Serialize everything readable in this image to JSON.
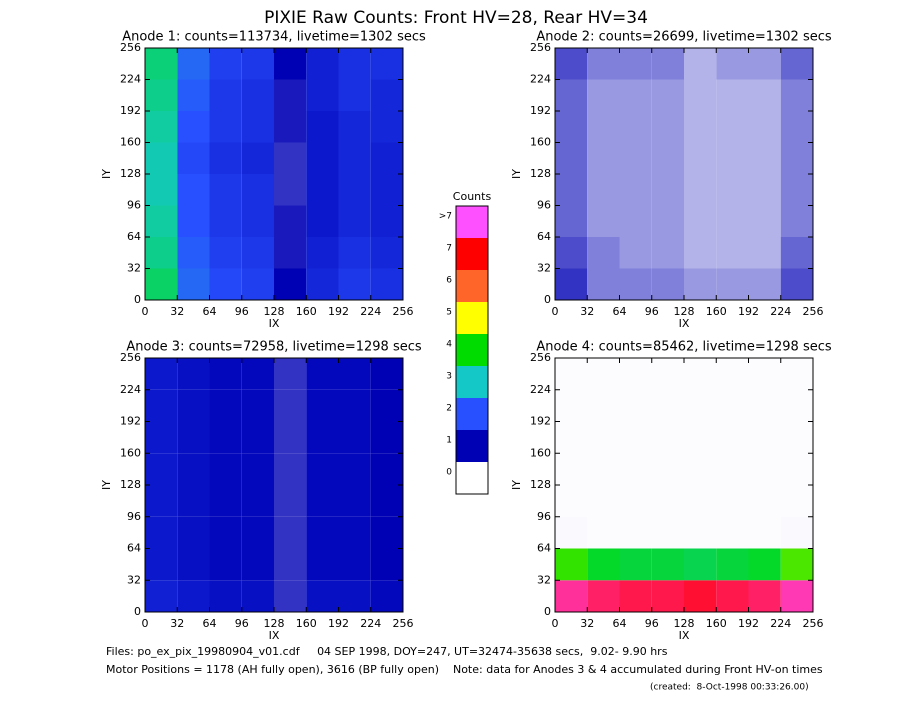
{
  "title": "PIXIE Raw Counts:  Front HV=28, Rear HV=34",
  "chart_data": [
    {
      "type": "heatmap",
      "title": "Anode 1: counts=113734, livetime=1302 secs",
      "xlabel": "IX",
      "ylabel": "IY",
      "xlim": [
        0,
        256
      ],
      "ylim": [
        0,
        256
      ],
      "xticks": [
        0,
        32,
        64,
        96,
        128,
        160,
        192,
        224,
        256
      ],
      "yticks": [
        0,
        32,
        64,
        96,
        128,
        160,
        192,
        224,
        256
      ],
      "xbins": [
        0,
        32,
        64,
        96,
        128,
        160,
        192,
        224,
        256
      ],
      "ybins": [
        0,
        32,
        64,
        96,
        128,
        160,
        192,
        224,
        256
      ],
      "z": [
        [
          3.5,
          2.2,
          1.9,
          1.8,
          1.0,
          1.5,
          1.7,
          1.6
        ],
        [
          3.3,
          2.1,
          1.8,
          1.7,
          0.9,
          1.4,
          1.6,
          1.5
        ],
        [
          3.2,
          2.0,
          1.7,
          1.6,
          0.9,
          1.3,
          1.5,
          1.4
        ],
        [
          3.1,
          2.0,
          1.7,
          1.6,
          0.8,
          1.3,
          1.5,
          1.4
        ],
        [
          3.1,
          1.9,
          1.6,
          1.5,
          0.8,
          1.3,
          1.5,
          1.4
        ],
        [
          3.2,
          2.0,
          1.7,
          1.6,
          0.9,
          1.3,
          1.5,
          1.5
        ],
        [
          3.3,
          2.1,
          1.7,
          1.6,
          0.9,
          1.4,
          1.6,
          1.5
        ],
        [
          3.4,
          2.2,
          1.8,
          1.7,
          1.0,
          1.4,
          1.6,
          1.6
        ]
      ]
    },
    {
      "type": "heatmap",
      "title": "Anode 2: counts=26699, livetime=1302 secs",
      "xlabel": "IX",
      "ylabel": "IY",
      "xlim": [
        0,
        256
      ],
      "ylim": [
        0,
        256
      ],
      "xticks": [
        0,
        32,
        64,
        96,
        128,
        160,
        192,
        224,
        256
      ],
      "yticks": [
        0,
        32,
        64,
        96,
        128,
        160,
        192,
        224,
        256
      ],
      "xbins": [
        0,
        32,
        64,
        96,
        128,
        160,
        192,
        224,
        256
      ],
      "ybins": [
        0,
        32,
        64,
        96,
        128,
        160,
        192,
        224,
        256
      ],
      "z": [
        [
          0.8,
          0.5,
          0.5,
          0.5,
          0.4,
          0.4,
          0.4,
          0.7
        ],
        [
          0.7,
          0.5,
          0.4,
          0.4,
          0.3,
          0.3,
          0.3,
          0.6
        ],
        [
          0.6,
          0.4,
          0.4,
          0.4,
          0.3,
          0.3,
          0.3,
          0.5
        ],
        [
          0.6,
          0.4,
          0.4,
          0.4,
          0.3,
          0.3,
          0.3,
          0.5
        ],
        [
          0.6,
          0.4,
          0.4,
          0.4,
          0.3,
          0.3,
          0.3,
          0.5
        ],
        [
          0.6,
          0.4,
          0.4,
          0.4,
          0.3,
          0.3,
          0.3,
          0.5
        ],
        [
          0.6,
          0.4,
          0.4,
          0.4,
          0.3,
          0.3,
          0.3,
          0.5
        ],
        [
          0.7,
          0.5,
          0.5,
          0.5,
          0.3,
          0.4,
          0.4,
          0.6
        ]
      ]
    },
    {
      "type": "heatmap",
      "title": "Anode 3: counts=72958, livetime=1298 secs",
      "xlabel": "IX",
      "ylabel": "IY",
      "xlim": [
        0,
        256
      ],
      "ylim": [
        0,
        256
      ],
      "xticks": [
        0,
        32,
        64,
        96,
        128,
        160,
        192,
        224,
        256
      ],
      "yticks": [
        0,
        32,
        64,
        96,
        128,
        160,
        192,
        224,
        256
      ],
      "xbins": [
        0,
        32,
        64,
        96,
        128,
        160,
        192,
        224,
        256
      ],
      "ybins": [
        0,
        32,
        64,
        96,
        128,
        160,
        192,
        224,
        256
      ],
      "z": [
        [
          1.4,
          1.3,
          1.2,
          1.2,
          0.8,
          1.2,
          1.2,
          1.1
        ],
        [
          1.3,
          1.2,
          1.1,
          1.1,
          0.8,
          1.1,
          1.1,
          1.0
        ],
        [
          1.3,
          1.2,
          1.1,
          1.1,
          0.8,
          1.1,
          1.1,
          1.0
        ],
        [
          1.3,
          1.2,
          1.1,
          1.1,
          0.8,
          1.1,
          1.1,
          1.0
        ],
        [
          1.3,
          1.2,
          1.1,
          1.1,
          0.8,
          1.1,
          1.1,
          1.0
        ],
        [
          1.3,
          1.2,
          1.1,
          1.1,
          0.8,
          1.1,
          1.1,
          1.0
        ],
        [
          1.3,
          1.2,
          1.1,
          1.1,
          0.8,
          1.1,
          1.1,
          1.0
        ],
        [
          1.3,
          1.2,
          1.1,
          1.1,
          0.8,
          1.1,
          1.1,
          1.0
        ]
      ]
    },
    {
      "type": "heatmap",
      "title": "Anode 4: counts=85462, livetime=1298 secs",
      "xlabel": "IX",
      "ylabel": "IY",
      "xlim": [
        0,
        256
      ],
      "ylim": [
        0,
        256
      ],
      "xticks": [
        0,
        32,
        64,
        96,
        128,
        160,
        192,
        224,
        256
      ],
      "yticks": [
        0,
        32,
        64,
        96,
        128,
        160,
        192,
        224,
        256
      ],
      "xbins": [
        0,
        32,
        64,
        96,
        128,
        160,
        192,
        224,
        256
      ],
      "ybins": [
        0,
        32,
        64,
        96,
        128,
        160,
        192,
        224,
        256
      ],
      "z": [
        [
          7.6,
          7.4,
          7.3,
          7.3,
          7.2,
          7.3,
          7.4,
          7.7
        ],
        [
          4.2,
          3.8,
          3.7,
          3.7,
          3.6,
          3.7,
          3.8,
          4.3
        ],
        [
          0.02,
          0.01,
          0.01,
          0.01,
          0.01,
          0.01,
          0.01,
          0.02
        ],
        [
          0.01,
          0.01,
          0.01,
          0.01,
          0.01,
          0.01,
          0.01,
          0.01
        ],
        [
          0.01,
          0.01,
          0.01,
          0.01,
          0.01,
          0.01,
          0.01,
          0.01
        ],
        [
          0.01,
          0.01,
          0.01,
          0.01,
          0.01,
          0.01,
          0.01,
          0.01
        ],
        [
          0.01,
          0.01,
          0.01,
          0.01,
          0.01,
          0.01,
          0.01,
          0.01
        ],
        [
          0.01,
          0.01,
          0.01,
          0.01,
          0.01,
          0.01,
          0.01,
          0.01
        ]
      ]
    }
  ],
  "colorbar": {
    "title": "Counts",
    "levels": [
      0,
      1,
      2,
      3,
      4,
      5,
      6,
      7,
      {
        "value": 8,
        "label": ">7"
      }
    ],
    "colors": [
      "#ffffff",
      "#0000b4",
      "#2850ff",
      "#14c8c8",
      "#00dc00",
      "#ffff00",
      "#ff6428",
      "#ff0000",
      "#ff50ff"
    ]
  },
  "footer": [
    "Files: po_ex_pix_19980904_v01.cdf     04 SEP 1998, DOY=247, UT=32474-35638 secs,  9.02- 9.90 hrs",
    "Motor Positions = 1178 (AH fully open), 3616 (BP fully open)    Note: data for Anodes 3 & 4 accumulated during Front HV-on times",
    "(created:  8-Oct-1998 00:33:26.00)"
  ]
}
